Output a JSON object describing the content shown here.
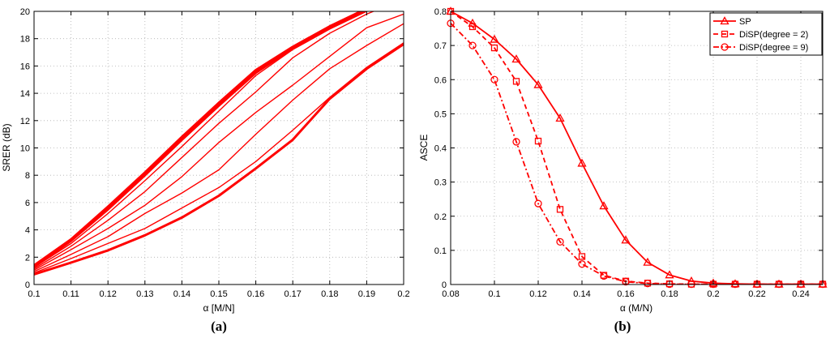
{
  "colors": {
    "series": "#ff0000",
    "grid": "#b0b0b0",
    "axis": "#000000"
  },
  "chart_data": [
    {
      "type": "line",
      "panel_label": "(a)",
      "xlabel": "α [M/N]",
      "ylabel": "SRER (dB)",
      "xlim": [
        0.1,
        0.2
      ],
      "ylim": [
        0,
        20
      ],
      "xticks": [
        0.1,
        0.11,
        0.12,
        0.13,
        0.14,
        0.15,
        0.16,
        0.17,
        0.18,
        0.19,
        0.2
      ],
      "yticks": [
        0,
        2,
        4,
        6,
        8,
        10,
        12,
        14,
        16,
        18,
        20
      ],
      "grid": true,
      "x": [
        0.1,
        0.11,
        0.12,
        0.13,
        0.14,
        0.15,
        0.16,
        0.17,
        0.18,
        0.19,
        0.2
      ],
      "series": [
        {
          "values": [
            1.4,
            3.3,
            5.7,
            8.2,
            10.8,
            13.3,
            15.7,
            17.4,
            18.9,
            20.2,
            21.2
          ],
          "style": "thick"
        },
        {
          "values": [
            1.3,
            3.2,
            5.5,
            8.0,
            10.6,
            13.1,
            15.5,
            17.3,
            18.8,
            20.1,
            21.1
          ],
          "style": "thick"
        },
        {
          "values": [
            1.25,
            3.0,
            5.2,
            7.6,
            10.1,
            12.7,
            15.3,
            17.2,
            18.7,
            20.0,
            21.0
          ],
          "style": "thin"
        },
        {
          "values": [
            1.15,
            2.8,
            4.7,
            6.8,
            9.3,
            11.8,
            14.1,
            16.6,
            18.4,
            19.8,
            20.9
          ],
          "style": "thin"
        },
        {
          "values": [
            1.05,
            2.55,
            4.1,
            5.8,
            7.9,
            10.4,
            12.6,
            14.6,
            16.7,
            18.8,
            19.8
          ],
          "style": "thin"
        },
        {
          "values": [
            0.95,
            2.2,
            3.5,
            5.2,
            6.7,
            8.4,
            11.0,
            13.5,
            15.8,
            17.5,
            19.1
          ],
          "style": "thin"
        },
        {
          "values": [
            0.85,
            1.9,
            3.0,
            4.1,
            5.6,
            7.1,
            9.0,
            11.3,
            13.7,
            15.9,
            17.7
          ],
          "style": "thin"
        },
        {
          "values": [
            0.75,
            1.6,
            2.5,
            3.6,
            4.9,
            6.5,
            8.5,
            10.6,
            13.6,
            15.8,
            17.6
          ],
          "style": "thick"
        }
      ]
    },
    {
      "type": "line",
      "panel_label": "(b)",
      "xlabel": "α (M/N)",
      "ylabel": "ASCE",
      "xlim": [
        0.08,
        0.25
      ],
      "ylim": [
        0,
        0.8
      ],
      "xticks": [
        0.08,
        0.1,
        0.12,
        0.14,
        0.16,
        0.18,
        0.2,
        0.22,
        0.24
      ],
      "yticks": [
        0,
        0.1,
        0.2,
        0.3,
        0.4,
        0.5,
        0.6,
        0.7,
        0.8
      ],
      "grid": true,
      "legend_position": "top-right",
      "x": [
        0.08,
        0.09,
        0.1,
        0.11,
        0.12,
        0.13,
        0.14,
        0.15,
        0.16,
        0.17,
        0.18,
        0.19,
        0.2,
        0.21,
        0.22,
        0.23,
        0.24,
        0.25
      ],
      "series": [
        {
          "name": "SP",
          "marker": "triangle",
          "dash": "solid",
          "values": [
            0.8,
            0.765,
            0.718,
            0.66,
            0.585,
            0.487,
            0.355,
            0.23,
            0.13,
            0.065,
            0.028,
            0.01,
            0.004,
            0.002,
            0.001,
            0.001,
            0.001,
            0.001
          ]
        },
        {
          "name": "DiSP(degree = 2)",
          "marker": "square",
          "dash": "dashed",
          "values": [
            0.8,
            0.755,
            0.693,
            0.595,
            0.42,
            0.22,
            0.082,
            0.027,
            0.01,
            0.004,
            0.002,
            0.001,
            0.001,
            0.001,
            0.001,
            0.001,
            0.001,
            0.001
          ]
        },
        {
          "name": "DiSP(degree = 9)",
          "marker": "circle",
          "dash": "dashdot",
          "values": [
            0.765,
            0.7,
            0.6,
            0.418,
            0.237,
            0.125,
            0.06,
            0.025,
            0.008,
            0.003,
            0.001,
            0.001,
            0.001,
            0.001,
            0.001,
            0.001,
            0.001,
            0.001
          ]
        }
      ]
    }
  ]
}
